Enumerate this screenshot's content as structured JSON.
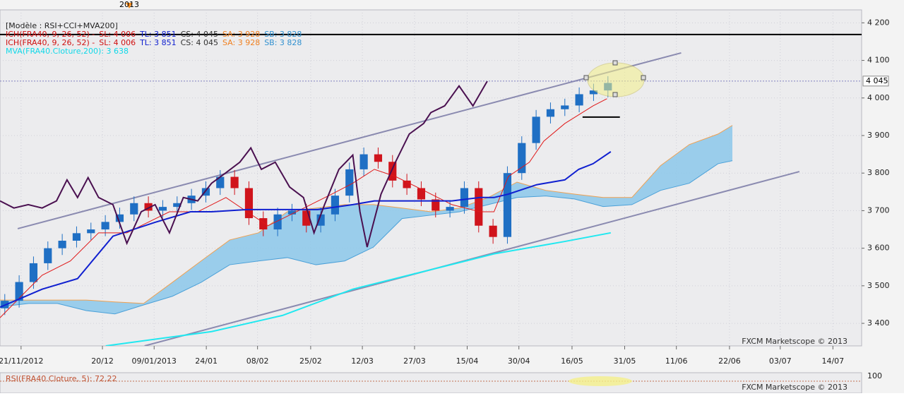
{
  "chart_data": {
    "type": "candlestick",
    "header": "[Modèle : RSI+CCI+MVA200]",
    "legend": [
      [
        {
          "text": "ICH(FRA40, 9, 26, 52) -",
          "color": "#d01010"
        },
        {
          "text": "SL: 4 006",
          "color": "#d01010"
        },
        {
          "text": "TL: 3 851",
          "color": "#1020d0"
        },
        {
          "text": "CS: 4 045",
          "color": "#303030"
        },
        {
          "text": "SA: 3 928",
          "color": "#f08020"
        },
        {
          "text": "SB: 3 828",
          "color": "#3090d0"
        }
      ],
      [
        {
          "text": "ICH(FRA40, 9, 26, 52) -",
          "color": "#d01010"
        },
        {
          "text": "SL: 4 006",
          "color": "#d01010"
        },
        {
          "text": "TL: 3 851",
          "color": "#1020d0"
        },
        {
          "text": "CS: 4 045",
          "color": "#303030"
        },
        {
          "text": "SA: 3 928",
          "color": "#f08020"
        },
        {
          "text": "SB: 3 828",
          "color": "#3090d0"
        }
      ],
      [
        {
          "text": "MVA(FRA40.Cloture,200): 3 638",
          "color": "#10d8e8"
        }
      ]
    ],
    "year_marker": "2013",
    "watermark": "FXCM Marketscope © 2013",
    "lower_panel": {
      "label": "RSI(FRA40.Cloture, 5): 72,22",
      "watermark": "FXCM Marketscope © 2013",
      "scale_label": "100"
    },
    "xlim": [
      0,
      180
    ],
    "xticks": [
      {
        "value": 4.4,
        "label": "21/11/2012"
      },
      {
        "value": 21.4,
        "label": "20/12"
      },
      {
        "value": 32.2,
        "label": "09/01/2013"
      },
      {
        "value": 43.1,
        "label": "24/01"
      },
      {
        "value": 53.8,
        "label": "08/02"
      },
      {
        "value": 64.9,
        "label": "25/02"
      },
      {
        "value": 75.7,
        "label": "12/03"
      },
      {
        "value": 86.6,
        "label": "27/03"
      },
      {
        "value": 97.6,
        "label": "15/04"
      },
      {
        "value": 108.4,
        "label": "30/04"
      },
      {
        "value": 119.5,
        "label": "16/05"
      },
      {
        "value": 130.5,
        "label": "31/05"
      },
      {
        "value": 141.3,
        "label": "11/06"
      },
      {
        "value": 152.4,
        "label": "22/06"
      },
      {
        "value": 163,
        "label": "03/07"
      },
      {
        "value": 174,
        "label": "14/07"
      }
    ],
    "ylim": [
      3340,
      4242
    ],
    "yticks": [
      {
        "value": 3400,
        "label": "3 400"
      },
      {
        "value": 3500,
        "label": "3 500"
      },
      {
        "value": 3600,
        "label": "3 600"
      },
      {
        "value": 3700,
        "label": "3 700"
      },
      {
        "value": 3800,
        "label": "3 800"
      },
      {
        "value": 3900,
        "label": "3 900"
      },
      {
        "value": 4000,
        "label": "4 000"
      },
      {
        "value": 4100,
        "label": "4 100"
      },
      {
        "value": 4200,
        "label": "4 200"
      }
    ],
    "grid": true,
    "up_color": "#1f6fc4",
    "down_color": "#d0141c",
    "candles": {
      "x": [
        1,
        4,
        7,
        10,
        13,
        16,
        19,
        22,
        25,
        28,
        31,
        34,
        37,
        40,
        43,
        46,
        49,
        52,
        55,
        58,
        61,
        64,
        67,
        70,
        73,
        76,
        79,
        82,
        85,
        88,
        91,
        94,
        97,
        100,
        103,
        106,
        109,
        112,
        115,
        118,
        121,
        124,
        127
      ],
      "open": [
        3440,
        3460,
        3510,
        3560,
        3600,
        3620,
        3640,
        3650,
        3670,
        3690,
        3720,
        3700,
        3710,
        3720,
        3740,
        3760,
        3790,
        3760,
        3680,
        3650,
        3690,
        3700,
        3660,
        3690,
        3740,
        3810,
        3850,
        3830,
        3780,
        3760,
        3730,
        3700,
        3710,
        3760,
        3660,
        3630,
        3800,
        3880,
        3950,
        3970,
        3980,
        4010,
        4020
      ],
      "high": [
        3478,
        3528,
        3578,
        3618,
        3638,
        3658,
        3668,
        3688,
        3708,
        3738,
        3738,
        3728,
        3738,
        3758,
        3778,
        3808,
        3808,
        3778,
        3698,
        3708,
        3718,
        3718,
        3708,
        3758,
        3828,
        3868,
        3868,
        3848,
        3798,
        3778,
        3748,
        3728,
        3778,
        3778,
        3678,
        3818,
        3898,
        3968,
        3988,
        3998,
        4028,
        4038,
        4058
      ],
      "low": [
        3422,
        3442,
        3492,
        3542,
        3582,
        3602,
        3622,
        3632,
        3652,
        3672,
        3682,
        3682,
        3692,
        3702,
        3722,
        3742,
        3742,
        3662,
        3632,
        3632,
        3672,
        3642,
        3642,
        3672,
        3722,
        3792,
        3812,
        3762,
        3742,
        3712,
        3682,
        3682,
        3692,
        3642,
        3612,
        3612,
        3782,
        3862,
        3932,
        3952,
        3962,
        3992,
        4002
      ],
      "close": [
        3460,
        3510,
        3560,
        3600,
        3620,
        3640,
        3650,
        3670,
        3690,
        3720,
        3700,
        3710,
        3720,
        3740,
        3760,
        3790,
        3760,
        3680,
        3650,
        3690,
        3700,
        3660,
        3690,
        3740,
        3810,
        3850,
        3830,
        3780,
        3760,
        3730,
        3700,
        3710,
        3760,
        3660,
        3630,
        3800,
        3880,
        3950,
        3970,
        3980,
        4010,
        4020,
        4040
      ]
    },
    "cloud": {
      "x": [
        0,
        6,
        12,
        18,
        24,
        30,
        36,
        42,
        48,
        54,
        60,
        66,
        72,
        78,
        84,
        90,
        96,
        102,
        108,
        114,
        120,
        126,
        132,
        138,
        144,
        150,
        153
      ],
      "a": [
        3462,
        3462,
        3462,
        3462,
        3457,
        3453,
        3509,
        3566,
        3622,
        3641,
        3697,
        3707,
        3716,
        3716,
        3707,
        3697,
        3707,
        3735,
        3776,
        3754,
        3744,
        3735,
        3735,
        3820,
        3876,
        3904,
        3927
      ],
      "b": [
        3444,
        3453,
        3453,
        3434,
        3425,
        3449,
        3472,
        3509,
        3556,
        3566,
        3575,
        3556,
        3566,
        3603,
        3679,
        3688,
        3697,
        3716,
        3735,
        3739,
        3731,
        3711,
        3716,
        3754,
        3773,
        3825,
        3833
      ],
      "fill": "#8cc8ea",
      "a_color": "#f0a050",
      "b_color": "#4aa0d8"
    },
    "lines": [
      {
        "color": "#e01818",
        "width": 1,
        "x": [
          0,
          4.4,
          8.8,
          14.7,
          20.6,
          26.5,
          29.5,
          35.4,
          41.3,
          47.2,
          51.6,
          56,
          61.9,
          69.3,
          73.7,
          78.2,
          82.6,
          88.5,
          94.4,
          100.3,
          103.2,
          106.2,
          110.6,
          113.6,
          118,
          123.9,
          126.8
        ],
        "values": [
          3415,
          3472,
          3528,
          3566,
          3641,
          3641,
          3660,
          3697,
          3697,
          3735,
          3697,
          3660,
          3697,
          3744,
          3773,
          3810,
          3791,
          3754,
          3716,
          3697,
          3697,
          3791,
          3829,
          3885,
          3932,
          3979,
          3998
        ]
      },
      {
        "color": "#1020d0",
        "width": 2,
        "x": [
          0,
          8.8,
          16.2,
          23.6,
          32.4,
          39.8,
          44.2,
          51.6,
          59,
          66.4,
          73.7,
          78.2,
          82.6,
          88.5,
          94.4,
          100.3,
          103.2,
          106.2,
          112.1,
          118,
          120.9,
          123.9,
          127.6
        ],
        "values": [
          3443,
          3491,
          3519,
          3632,
          3669,
          3697,
          3697,
          3703,
          3703,
          3703,
          3716,
          3726,
          3726,
          3726,
          3726,
          3735,
          3735,
          3744,
          3769,
          3782,
          3810,
          3825,
          3857
        ]
      },
      {
        "color": "#20e8f0",
        "width": 2,
        "x": [
          22.1,
          44.2,
          59,
          73.7,
          88.5,
          103.2,
          118,
          127.6
        ],
        "values": [
          3340,
          3378,
          3421,
          3491,
          3538,
          3585,
          3618,
          3641
        ]
      },
      {
        "color": "#4a1050",
        "width": 2,
        "x": [
          0,
          2.9,
          5.9,
          8.8,
          11.8,
          14,
          16.2,
          18.4,
          20.6,
          23.6,
          26.5,
          29.5,
          32.4,
          35.4,
          38.3,
          41.3,
          44.2,
          47.2,
          50.1,
          52.4,
          54.6,
          57.5,
          60.5,
          63.4,
          65.6,
          67.8,
          70.8,
          73.7,
          75.2,
          76.7,
          79.6,
          82.6,
          85.5,
          88.5,
          90,
          92.9,
          95.9,
          98.8,
          101.8
        ],
        "values": [
          3726,
          3707,
          3716,
          3707,
          3726,
          3782,
          3735,
          3788,
          3735,
          3716,
          3613,
          3697,
          3716,
          3641,
          3735,
          3726,
          3773,
          3801,
          3829,
          3867,
          3810,
          3829,
          3763,
          3735,
          3641,
          3716,
          3810,
          3848,
          3697,
          3603,
          3744,
          3829,
          3904,
          3932,
          3961,
          3979,
          4032,
          3979,
          4045
        ]
      }
    ],
    "trendlines": [
      {
        "color": "#8a8ab0",
        "x": [
          3.7,
          142.3
        ],
        "values": [
          3652,
          4120
        ]
      },
      {
        "color": "#8a8ab0",
        "x": [
          30.2,
          167
        ],
        "values": [
          3340,
          3804
        ]
      }
    ],
    "levels": [
      {
        "color": "#000000",
        "x": [
          0,
          180
        ],
        "values": [
          4169,
          4169
        ]
      },
      {
        "color": "#000000",
        "x": [
          121.7,
          129.5
        ],
        "values": [
          3949,
          3949
        ]
      }
    ],
    "price_level": {
      "value": 4045,
      "label": "4 045"
    }
  }
}
